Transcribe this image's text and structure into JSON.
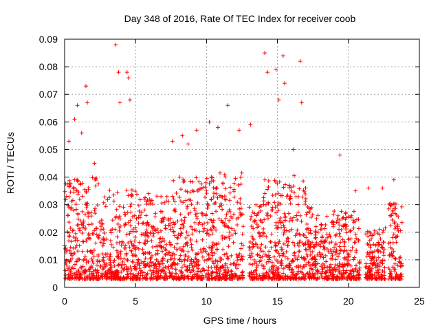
{
  "chart_data": {
    "type": "scatter",
    "title": "Day 348 of 2016, Rate Of TEC Index for receiver coob",
    "xlabel": "GPS time / hours",
    "ylabel": "ROTI / TECUs",
    "xlim": [
      0,
      25
    ],
    "ylim": [
      0,
      0.09
    ],
    "xticks": [
      0,
      5,
      10,
      15,
      20,
      25
    ],
    "yticks": [
      0,
      0.01,
      0.02,
      0.03,
      0.04,
      0.05,
      0.06,
      0.07,
      0.08,
      0.09
    ],
    "xtick_labels": [
      "0",
      "5",
      "10",
      "15",
      "20",
      "25"
    ],
    "ytick_labels": [
      "0",
      "0.01",
      "0.02",
      "0.03",
      "0.04",
      "0.05",
      "0.06",
      "0.07",
      "0.08",
      "0.09"
    ],
    "grid": true,
    "marker": "+",
    "color": "#ff0000",
    "series": [
      {
        "points": [
          [
            0.3,
            0.053
          ],
          [
            0.7,
            0.061
          ],
          [
            0.9,
            0.066
          ],
          [
            1.2,
            0.056
          ],
          [
            1.5,
            0.073
          ],
          [
            1.6,
            0.067
          ],
          [
            2.1,
            0.045
          ],
          [
            3.6,
            0.088
          ],
          [
            3.8,
            0.078
          ],
          [
            3.9,
            0.067
          ],
          [
            4.4,
            0.078
          ],
          [
            4.5,
            0.076
          ],
          [
            4.6,
            0.068
          ],
          [
            7.6,
            0.053
          ],
          [
            8.3,
            0.055
          ],
          [
            8.7,
            0.052
          ],
          [
            9.3,
            0.057
          ],
          [
            10.2,
            0.06
          ],
          [
            10.8,
            0.058
          ],
          [
            11.5,
            0.066
          ],
          [
            12.3,
            0.057
          ],
          [
            13.1,
            0.059
          ],
          [
            14.1,
            0.085
          ],
          [
            14.3,
            0.078
          ],
          [
            14.9,
            0.079
          ],
          [
            15.1,
            0.068
          ],
          [
            15.4,
            0.084
          ],
          [
            15.5,
            0.074
          ],
          [
            16.1,
            0.05
          ],
          [
            16.6,
            0.082
          ],
          [
            16.7,
            0.067
          ],
          [
            19.4,
            0.048
          ],
          [
            20.5,
            0.035
          ],
          [
            21.4,
            0.036
          ],
          [
            22.4,
            0.036
          ],
          [
            23.2,
            0.039
          ]
        ]
      }
    ],
    "bands": [
      {
        "x": [
          0.0,
          2.6
        ],
        "top": 0.04
      },
      {
        "x": [
          2.6,
          5.2
        ],
        "top": 0.036
      },
      {
        "x": [
          5.2,
          7.6
        ],
        "top": 0.034
      },
      {
        "x": [
          7.6,
          10.4
        ],
        "top": 0.04
      },
      {
        "x": [
          10.4,
          12.6
        ],
        "top": 0.042
      },
      {
        "x": [
          13.0,
          14.0
        ],
        "top": 0.03
      },
      {
        "x": [
          14.0,
          15.8
        ],
        "top": 0.04
      },
      {
        "x": [
          15.8,
          17.0
        ],
        "top": 0.044
      },
      {
        "x": [
          17.0,
          18.4
        ],
        "top": 0.03
      },
      {
        "x": [
          18.4,
          20.8
        ],
        "top": 0.028
      },
      {
        "x": [
          21.2,
          22.6
        ],
        "top": 0.022
      },
      {
        "x": [
          22.8,
          23.8
        ],
        "top": 0.032
      }
    ]
  }
}
